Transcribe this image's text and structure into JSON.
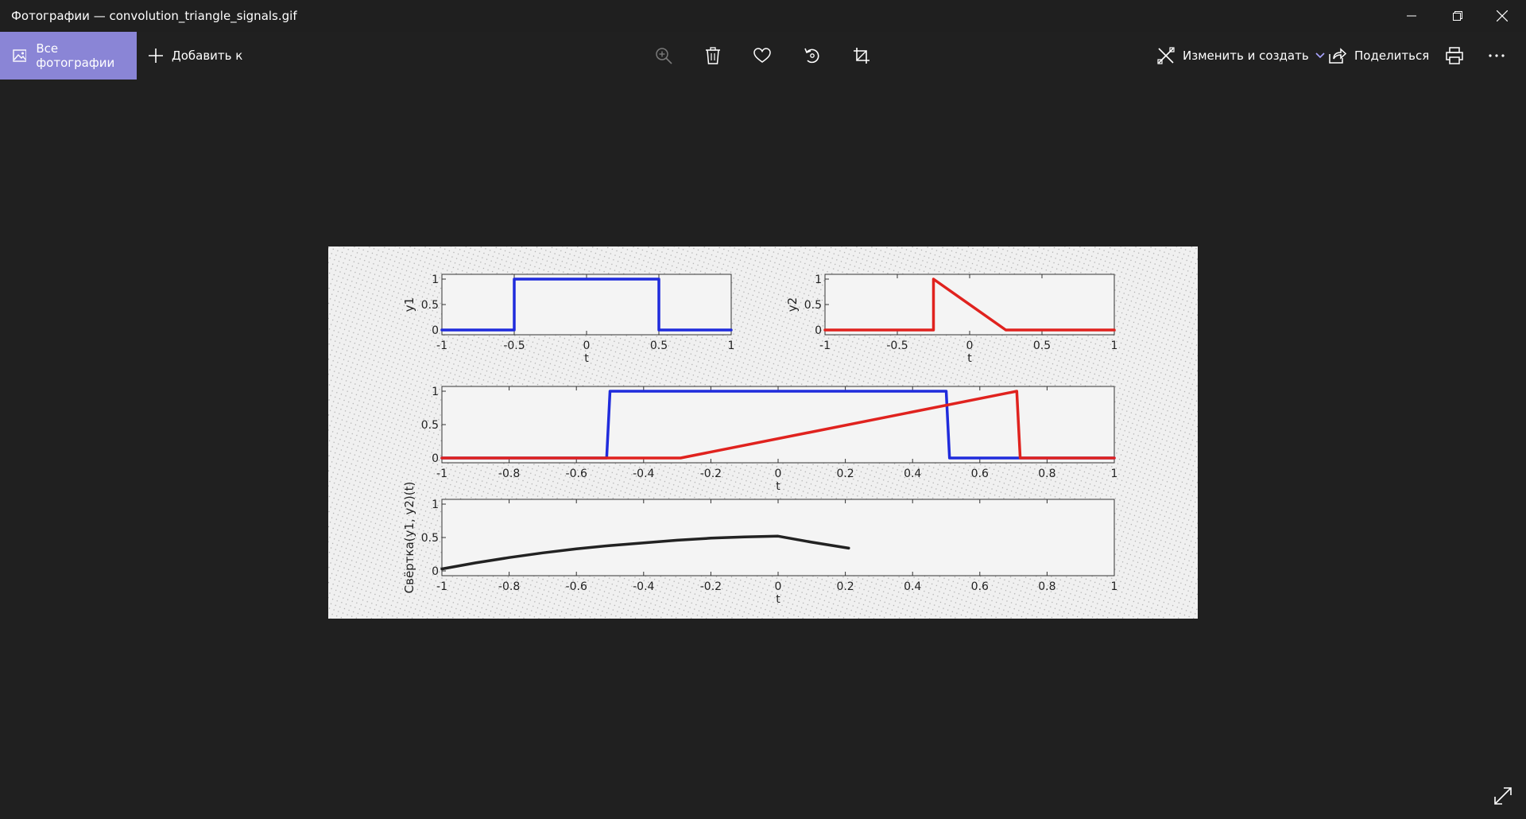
{
  "window": {
    "title": "Фотографии — convolution_triangle_signals.gif"
  },
  "toolbar": {
    "all_photos": "Все фотографии",
    "add_to": "Добавить к",
    "edit_create": "Изменить и создать",
    "share": "Поделиться",
    "icons": [
      "zoom-in-icon",
      "delete-icon",
      "heart-icon",
      "rotate-icon",
      "crop-icon",
      "print-icon",
      "more-icon"
    ]
  },
  "colors": {
    "accent": "#8a85d6",
    "series_blue": "#1f2bdc",
    "series_red": "#e0221e",
    "series_black": "#222222"
  },
  "chart_data": [
    {
      "type": "line",
      "panel": "top-left",
      "xlabel": "t",
      "ylabel": "y1",
      "xlim": [
        -1,
        1
      ],
      "ylim": [
        0,
        1
      ],
      "xticks": [
        "-1",
        "-0.5",
        "0",
        "0.5",
        "1"
      ],
      "yticks": [
        "0",
        "0.5",
        "1"
      ],
      "series": [
        {
          "color": "blue",
          "x": [
            -1,
            -0.5,
            -0.5,
            0.5,
            0.5,
            1
          ],
          "y": [
            0,
            0,
            1,
            1,
            0,
            0
          ]
        }
      ]
    },
    {
      "type": "line",
      "panel": "top-right",
      "xlabel": "t",
      "ylabel": "y2",
      "xlim": [
        -1,
        1
      ],
      "ylim": [
        0,
        1
      ],
      "xticks": [
        "-1",
        "-0.5",
        "0",
        "0.5",
        "1"
      ],
      "yticks": [
        "0",
        "0.5",
        "1"
      ],
      "series": [
        {
          "color": "red",
          "x": [
            -1,
            -0.25,
            -0.25,
            0.25,
            1
          ],
          "y": [
            0,
            0,
            1,
            0,
            0
          ]
        }
      ]
    },
    {
      "type": "line",
      "panel": "middle",
      "xlabel": "t",
      "ylabel": "",
      "xlim": [
        -1,
        1
      ],
      "ylim": [
        0,
        1
      ],
      "xticks": [
        "-1",
        "-0.8",
        "-0.6",
        "-0.4",
        "-0.2",
        "0",
        "0.2",
        "0.4",
        "0.6",
        "0.8",
        "1"
      ],
      "yticks": [
        "0",
        "0.5",
        "1"
      ],
      "series": [
        {
          "color": "blue",
          "x": [
            -1,
            -0.51,
            -0.5,
            0.5,
            0.51,
            1
          ],
          "y": [
            0,
            0,
            1,
            1,
            0,
            0
          ]
        },
        {
          "color": "red",
          "x": [
            -1,
            -0.29,
            0.71,
            0.72,
            1
          ],
          "y": [
            0,
            0,
            1,
            0,
            0
          ]
        }
      ]
    },
    {
      "type": "line",
      "panel": "bottom",
      "xlabel": "t",
      "ylabel": "Свёртка(y1, y2)(t)",
      "xlim": [
        -1,
        1
      ],
      "ylim": [
        0,
        1
      ],
      "xticks": [
        "-1",
        "-0.8",
        "-0.6",
        "-0.4",
        "-0.2",
        "0",
        "0.2",
        "0.4",
        "0.6",
        "0.8",
        "1"
      ],
      "yticks": [
        "0",
        "0.5",
        "1"
      ],
      "series": [
        {
          "color": "black",
          "x": [
            -1,
            -0.9,
            -0.8,
            -0.7,
            -0.6,
            -0.5,
            -0.4,
            -0.3,
            -0.2,
            -0.1,
            0,
            0.1,
            0.21
          ],
          "y": [
            0.03,
            0.12,
            0.2,
            0.27,
            0.33,
            0.38,
            0.42,
            0.46,
            0.49,
            0.51,
            0.52,
            0.43,
            0.34
          ]
        }
      ]
    }
  ]
}
